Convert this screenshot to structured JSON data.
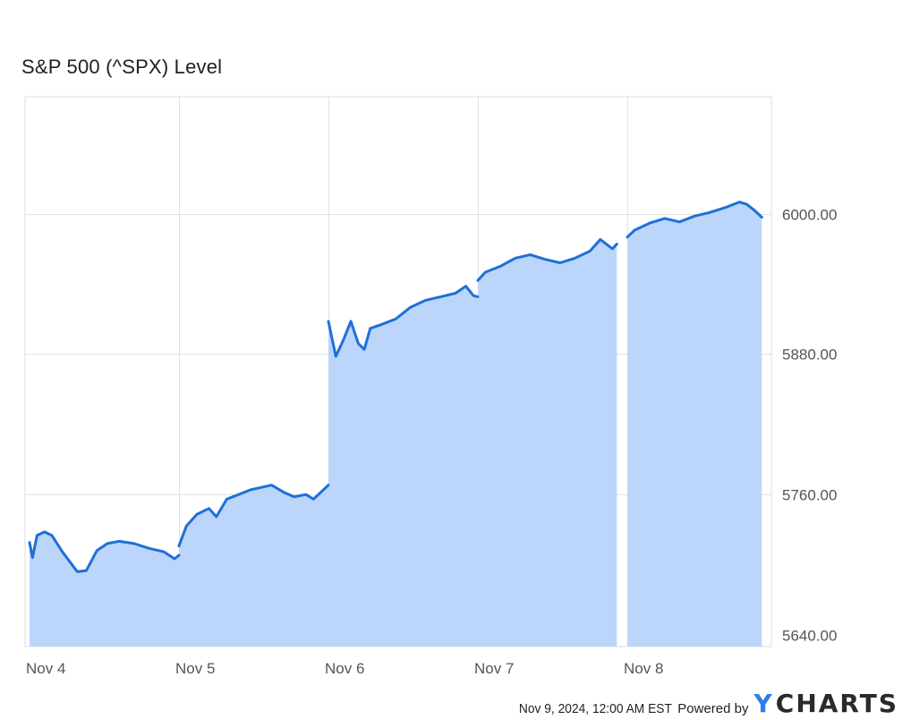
{
  "chart_data": {
    "type": "area",
    "title": "S&P 500 (^SPX) Level",
    "y_axis_position": "right",
    "grid": true,
    "ylim": [
      5630,
      6100
    ],
    "y_ticks": [
      "5640.00",
      "5760.00",
      "5880.00",
      "6000.00"
    ],
    "x_ticks": [
      "Nov 4",
      "Nov 5",
      "Nov 6",
      "Nov 7",
      "Nov 8"
    ],
    "series": [
      {
        "color": "#1f6fd8",
        "fill": "#bcd6fb",
        "segments": [
          [
            [
              0.0,
              5719
            ],
            [
              0.02,
              5706
            ],
            [
              0.05,
              5725
            ],
            [
              0.1,
              5728
            ],
            [
              0.15,
              5725
            ],
            [
              0.22,
              5711
            ],
            [
              0.32,
              5694
            ],
            [
              0.38,
              5695
            ],
            [
              0.45,
              5712
            ],
            [
              0.52,
              5718
            ],
            [
              0.6,
              5720
            ],
            [
              0.7,
              5718
            ],
            [
              0.8,
              5714
            ],
            [
              0.9,
              5711
            ],
            [
              0.97,
              5705
            ],
            [
              1.0,
              5708
            ]
          ],
          [
            [
              1.0,
              5716
            ],
            [
              1.05,
              5733
            ],
            [
              1.12,
              5743
            ],
            [
              1.2,
              5748
            ],
            [
              1.25,
              5741
            ],
            [
              1.32,
              5756
            ],
            [
              1.4,
              5760
            ],
            [
              1.48,
              5764
            ],
            [
              1.55,
              5766
            ],
            [
              1.62,
              5768
            ],
            [
              1.7,
              5762
            ],
            [
              1.77,
              5758
            ],
            [
              1.85,
              5760
            ],
            [
              1.9,
              5756
            ],
            [
              1.95,
              5762
            ],
            [
              2.0,
              5768
            ]
          ],
          [
            [
              2.0,
              5908
            ],
            [
              2.05,
              5878
            ],
            [
              2.1,
              5892
            ],
            [
              2.15,
              5908
            ],
            [
              2.2,
              5889
            ],
            [
              2.24,
              5884
            ],
            [
              2.28,
              5902
            ],
            [
              2.35,
              5905
            ],
            [
              2.45,
              5910
            ],
            [
              2.55,
              5920
            ],
            [
              2.65,
              5926
            ],
            [
              2.75,
              5929
            ],
            [
              2.85,
              5932
            ],
            [
              2.92,
              5938
            ],
            [
              2.97,
              5930
            ],
            [
              3.0,
              5929
            ]
          ],
          [
            [
              3.0,
              5943
            ],
            [
              3.05,
              5950
            ],
            [
              3.15,
              5955
            ],
            [
              3.25,
              5962
            ],
            [
              3.35,
              5965
            ],
            [
              3.45,
              5961
            ],
            [
              3.55,
              5958
            ],
            [
              3.65,
              5962
            ],
            [
              3.75,
              5968
            ],
            [
              3.82,
              5978
            ],
            [
              3.9,
              5970
            ],
            [
              3.93,
              5974
            ]
          ],
          [
            [
              4.0,
              5980
            ],
            [
              4.05,
              5986
            ],
            [
              4.15,
              5992
            ],
            [
              4.25,
              5996
            ],
            [
              4.35,
              5993
            ],
            [
              4.45,
              5998
            ],
            [
              4.55,
              6001
            ],
            [
              4.65,
              6005
            ],
            [
              4.75,
              6010
            ],
            [
              4.8,
              6008
            ],
            [
              4.85,
              6003
            ],
            [
              4.9,
              5997
            ]
          ]
        ]
      }
    ]
  },
  "footer": {
    "timestamp": "Nov 9, 2024, 12:00 AM EST",
    "powered_by": "Powered by",
    "brand_mark": "Y",
    "brand": "CHARTS"
  }
}
